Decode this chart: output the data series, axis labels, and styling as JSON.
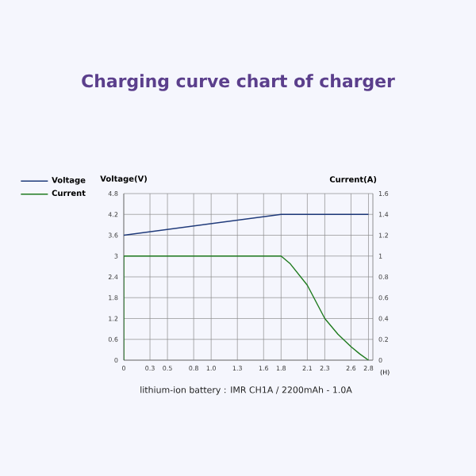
{
  "chart_data": {
    "type": "line",
    "title": "Charging curve chart of charger",
    "xlabel": "(H)",
    "ylabel": "Voltage(V)",
    "y2label": "Current(A)",
    "annotations": [
      "lithium-ion battery : IMR  CH1A  / 2200mAh - 1.0A"
    ],
    "series": [
      {
        "name": "Voltage",
        "color": "#1f3a7a",
        "axis": "y",
        "x": [
          0,
          1.8,
          2.8
        ],
        "values": [
          3.6,
          4.2,
          4.2
        ]
      },
      {
        "name": "Current",
        "color": "#1e7a1e",
        "axis": "y2",
        "x": [
          0,
          0,
          1.8,
          1.9,
          2.1,
          2.2,
          2.3,
          2.45,
          2.6,
          2.7,
          2.8
        ],
        "values": [
          0,
          1.0,
          1.0,
          0.93,
          0.72,
          0.56,
          0.4,
          0.25,
          0.13,
          0.06,
          0
        ]
      }
    ],
    "xlim": [
      0,
      2.85
    ],
    "xticks": [
      0,
      0.3,
      0.5,
      0.8,
      {
        "value": 1.0,
        "label": "1.0"
      },
      1.3,
      1.6,
      1.8,
      2.1,
      2.3,
      2.6,
      2.8
    ],
    "ylim": [
      0,
      4.8
    ],
    "yticks": [
      0,
      0.6,
      1.2,
      1.8,
      2.4,
      3,
      3.6,
      4.2,
      4.8
    ],
    "y2lim": [
      0,
      1.6
    ],
    "y2ticks": [
      0,
      0.2,
      0.4,
      0.6,
      0.8,
      1,
      1.2,
      1.4,
      1.6
    ],
    "grid": true,
    "legend": "top left",
    "marker": "none",
    "line_style": "solid"
  }
}
